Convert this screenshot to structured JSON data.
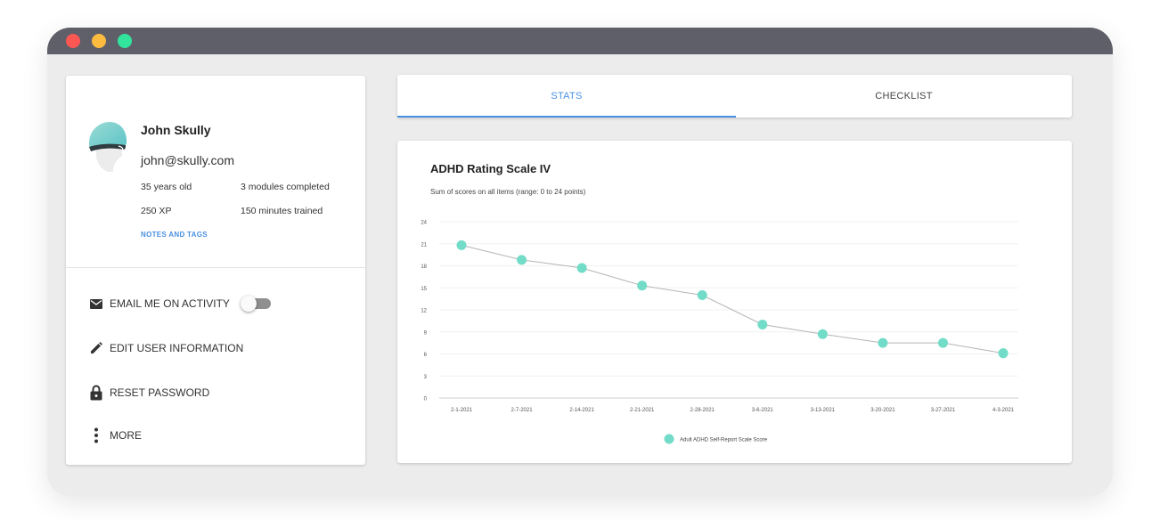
{
  "window": {
    "controls": [
      "close",
      "minimize",
      "maximize"
    ]
  },
  "profile": {
    "avatar_icon": "user-avatar-icon",
    "name": "John Skully",
    "email": "john@skully.com",
    "age": "35 years old",
    "modules": "3 modules completed",
    "xp": "250 XP",
    "minutes": "150 minutes trained",
    "notes_link": "NOTES AND TAGS"
  },
  "actions": {
    "email_toggle": {
      "label": "EMAIL ME ON ACTIVITY",
      "icon": "mail-icon",
      "enabled": false
    },
    "edit": {
      "label": "EDIT USER INFORMATION",
      "icon": "pencil-icon"
    },
    "reset": {
      "label": "RESET PASSWORD",
      "icon": "lock-icon"
    },
    "more": {
      "label": "MORE",
      "icon": "more-vert-icon"
    }
  },
  "tabs": {
    "stats": "STATS",
    "checklist": "CHECKLIST",
    "active": "stats"
  },
  "colors": {
    "accent": "#4a90e2",
    "point": "#72dcc8",
    "line": "#b5b5b5",
    "titlebar": "#5e5f69"
  },
  "chart_data": {
    "type": "line",
    "title": "ADHD Rating Scale IV",
    "subtitle": "Sum of scores on all items (range: 0 to 24 points)",
    "categories": [
      "2-1-2021",
      "2-7-2021",
      "2-14-2021",
      "2-21-2021",
      "2-28-2021",
      "3-6-2021",
      "3-13-2021",
      "3-20-2021",
      "3-27-2021",
      "4-3-2021"
    ],
    "series": [
      {
        "name": "Adult ADHD Self-Report Scale Score",
        "values": [
          20.8,
          18.8,
          17.7,
          15.3,
          14.0,
          10.0,
          8.7,
          7.5,
          7.5,
          6.1
        ]
      }
    ],
    "ylim": [
      0,
      24
    ],
    "yticks": [
      0,
      3,
      6,
      9,
      12,
      15,
      18,
      21,
      24
    ],
    "grid": true,
    "legend": "bottom-center"
  }
}
